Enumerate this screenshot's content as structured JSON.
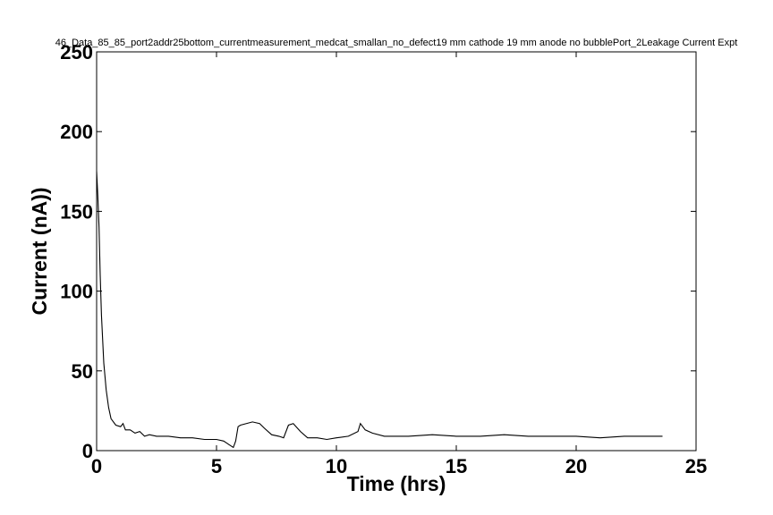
{
  "chart_data": {
    "type": "line",
    "title": "46_Data_85_85_port2addr25bottom_currentmeasurement_medcat_smallan_no_defect19 mm cathode 19 mm anode no bubblePort_2Leakage Current Expt",
    "xlabel": "Time (hrs)",
    "ylabel": "Current (nA))",
    "xlim": [
      0,
      25
    ],
    "ylim": [
      0,
      250
    ],
    "xticks": [
      0,
      5,
      10,
      15,
      20,
      25
    ],
    "yticks": [
      0,
      50,
      100,
      150,
      200,
      250
    ],
    "grid": false,
    "legend": "none",
    "line_color": "#000000",
    "series": [
      {
        "x": [
          0.0,
          0.05,
          0.1,
          0.15,
          0.2,
          0.3,
          0.4,
          0.5,
          0.6,
          0.8,
          1.0,
          1.1,
          1.2,
          1.4,
          1.6,
          1.8,
          2.0,
          2.2,
          2.5,
          3.0,
          3.5,
          4.0,
          4.5,
          5.0,
          5.3,
          5.5,
          5.7,
          5.8,
          5.9,
          6.0,
          6.5,
          6.8,
          7.0,
          7.3,
          7.6,
          7.8,
          8.0,
          8.2,
          8.5,
          8.8,
          9.2,
          9.6,
          10.0,
          10.5,
          10.9,
          11.0,
          11.2,
          11.5,
          12.0,
          13.0,
          14.0,
          15.0,
          16.0,
          17.0,
          18.0,
          19.0,
          20.0,
          21.0,
          22.0,
          23.0,
          23.6
        ],
        "y": [
          175,
          160,
          140,
          110,
          85,
          55,
          38,
          27,
          20,
          16,
          15,
          17,
          13,
          13,
          11,
          12,
          9,
          10,
          9,
          9,
          8,
          8,
          7,
          7,
          6,
          4,
          2,
          6,
          15,
          16,
          18,
          17,
          14,
          10,
          9,
          8,
          16,
          17,
          12,
          8,
          8,
          7,
          8,
          9,
          12,
          17,
          13,
          11,
          9,
          9,
          10,
          9,
          9,
          10,
          9,
          9,
          9,
          8,
          9,
          9,
          9
        ]
      }
    ]
  }
}
